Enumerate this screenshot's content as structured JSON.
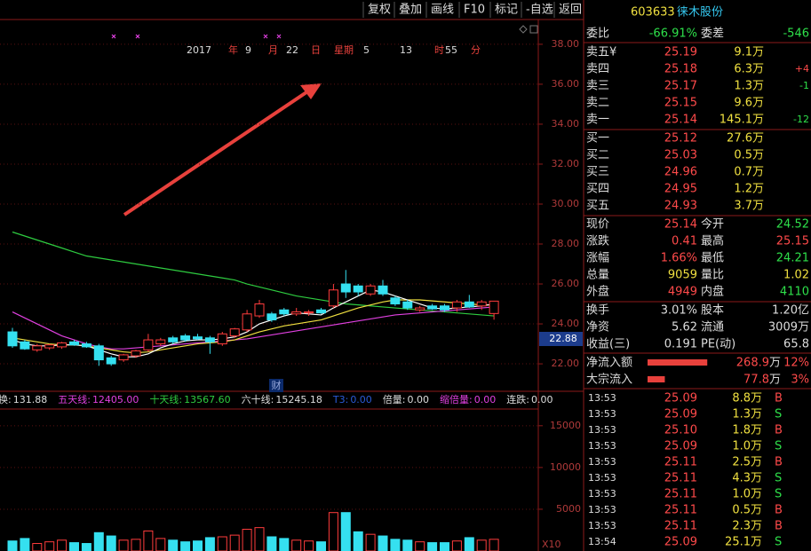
{
  "toolbar": {
    "buttons": [
      "复权",
      "叠加",
      "画线",
      "F10",
      "标记",
      "-自选",
      "返回"
    ]
  },
  "date_row": [
    "2017",
    "年",
    "9",
    "月",
    "22",
    "日",
    "星期",
    "5",
    "13",
    "时",
    "55",
    "分"
  ],
  "price_chart": {
    "ylim": [
      20.67,
      39.24
    ],
    "yticks": [
      {
        "value": 38,
        "label": "38.00"
      },
      {
        "value": 36,
        "label": "36.00"
      },
      {
        "value": 34,
        "label": "34.00"
      },
      {
        "value": 32,
        "label": "32.00"
      },
      {
        "value": 30,
        "label": "30.00"
      },
      {
        "value": 28,
        "label": "28.00"
      },
      {
        "value": 26,
        "label": "26.00"
      },
      {
        "value": 24,
        "label": "24.00"
      },
      {
        "value": 22,
        "label": "22.00"
      }
    ],
    "cursor_label": "22.88",
    "badge": "财",
    "candles": [
      [
        23.6,
        23.8,
        22.8,
        22.9
      ],
      [
        23.1,
        23.2,
        22.7,
        22.75
      ],
      [
        22.7,
        23.0,
        22.6,
        22.9
      ],
      [
        22.8,
        23.0,
        22.7,
        22.95
      ],
      [
        22.85,
        23.1,
        22.75,
        23.05
      ],
      [
        23.1,
        23.2,
        22.9,
        22.95
      ],
      [
        23.0,
        23.1,
        22.8,
        22.85
      ],
      [
        22.9,
        23.0,
        21.9,
        22.2
      ],
      [
        22.3,
        22.4,
        21.9,
        22.0
      ],
      [
        22.2,
        22.5,
        22.1,
        22.45
      ],
      [
        22.4,
        22.7,
        22.3,
        22.65
      ],
      [
        22.7,
        23.5,
        22.6,
        23.2
      ],
      [
        23.0,
        23.3,
        22.9,
        23.2
      ],
      [
        23.3,
        23.4,
        23.0,
        23.1
      ],
      [
        23.4,
        23.5,
        23.1,
        23.2
      ],
      [
        23.35,
        23.5,
        23.2,
        23.25
      ],
      [
        23.3,
        23.4,
        22.5,
        23.1
      ],
      [
        23.0,
        23.6,
        22.9,
        23.5
      ],
      [
        23.4,
        23.8,
        23.3,
        23.75
      ],
      [
        23.7,
        24.7,
        23.6,
        24.5
      ],
      [
        24.4,
        25.2,
        24.3,
        25.0
      ],
      [
        24.5,
        24.6,
        24.1,
        24.2
      ],
      [
        24.7,
        24.8,
        24.4,
        24.5
      ],
      [
        24.5,
        24.8,
        24.4,
        24.6
      ],
      [
        24.55,
        24.7,
        24.4,
        24.6
      ],
      [
        24.7,
        24.8,
        24.5,
        24.55
      ],
      [
        24.9,
        26.0,
        24.8,
        25.7
      ],
      [
        26.0,
        26.7,
        25.3,
        25.6
      ],
      [
        25.9,
        26.0,
        25.4,
        25.6
      ],
      [
        25.5,
        26.0,
        25.4,
        25.9
      ],
      [
        25.9,
        26.2,
        25.4,
        25.5
      ],
      [
        25.3,
        25.4,
        24.9,
        25.0
      ],
      [
        25.1,
        25.2,
        24.7,
        24.8
      ],
      [
        24.7,
        24.9,
        24.6,
        24.8
      ],
      [
        24.9,
        25.0,
        24.7,
        24.75
      ],
      [
        24.9,
        25.0,
        24.6,
        24.7
      ],
      [
        24.8,
        25.2,
        24.6,
        25.1
      ],
      [
        25.1,
        25.45,
        24.8,
        24.85
      ],
      [
        24.9,
        25.2,
        24.7,
        25.1
      ],
      [
        24.52,
        25.15,
        24.21,
        25.14
      ]
    ],
    "lines": [
      {
        "color": "#2ecc40",
        "values": [
          28.6,
          28.4,
          28.2,
          28.0,
          27.8,
          27.6,
          27.4,
          27.3,
          27.2,
          27.1,
          27.0,
          26.9,
          26.8,
          26.7,
          26.6,
          26.5,
          26.4,
          26.3,
          26.2,
          26.0,
          25.85,
          25.7,
          25.55,
          25.4,
          25.3,
          25.2,
          25.1,
          25.0,
          24.95,
          24.9,
          24.85,
          24.8,
          24.75,
          24.7,
          24.65,
          24.6,
          24.55,
          24.5,
          24.45,
          24.4
        ]
      },
      {
        "color": "#e040e0",
        "values": [
          24.6,
          24.3,
          24.0,
          23.7,
          23.4,
          23.2,
          23.0,
          22.85,
          22.75,
          22.75,
          22.8,
          22.85,
          22.9,
          22.95,
          23.0,
          23.05,
          23.1,
          23.15,
          23.2,
          23.25,
          23.35,
          23.45,
          23.55,
          23.65,
          23.75,
          23.85,
          23.95,
          24.05,
          24.15,
          24.25,
          24.35,
          24.45,
          24.5,
          24.55,
          24.6,
          24.65,
          24.7,
          24.75,
          24.8,
          24.85
        ]
      },
      {
        "color": "#f0e040",
        "values": [
          23.3,
          23.2,
          23.1,
          23.0,
          22.95,
          22.95,
          22.9,
          22.8,
          22.7,
          22.6,
          22.55,
          22.6,
          22.7,
          22.8,
          22.9,
          23.0,
          23.05,
          23.1,
          23.2,
          23.4,
          23.6,
          23.75,
          23.9,
          24.0,
          24.1,
          24.2,
          24.4,
          24.6,
          24.8,
          24.95,
          25.1,
          25.2,
          25.2,
          25.2,
          25.15,
          25.1,
          25.05,
          25.0,
          24.95,
          24.95
        ]
      },
      {
        "color": "#ffffff",
        "values": [
          23.2,
          23.0,
          22.9,
          22.9,
          22.95,
          22.95,
          22.9,
          22.7,
          22.5,
          22.35,
          22.35,
          22.5,
          22.8,
          23.0,
          23.15,
          23.2,
          23.2,
          23.25,
          23.35,
          23.6,
          24.0,
          24.2,
          24.4,
          24.55,
          24.5,
          24.45,
          24.8,
          25.1,
          25.4,
          25.7,
          25.6,
          25.4,
          25.2,
          25.0,
          24.8,
          24.75,
          24.8,
          24.85,
          24.9,
          25.0
        ]
      }
    ]
  },
  "indicators": [
    [
      "换:",
      "131.88"
    ],
    [
      "五天线:",
      "12405.00"
    ],
    [
      "十天线:",
      "13567.60"
    ],
    [
      "六十线:",
      "15245.18"
    ],
    [
      "T3:",
      "0.00"
    ],
    [
      "倍量:",
      "0.00"
    ],
    [
      "缩倍量:",
      "0.00"
    ],
    [
      "连跌:",
      "0.00"
    ]
  ],
  "volume_chart": {
    "ylim": [
      0,
      17000
    ],
    "yticks": [
      15000,
      10000,
      5000
    ],
    "unit": "X10",
    "values": [
      1200,
      1500,
      900,
      1100,
      1300,
      1000,
      900,
      2200,
      1800,
      1300,
      1400,
      2400,
      1500,
      1300,
      1100,
      1200,
      1600,
      1700,
      1900,
      2600,
      2800,
      1700,
      1500,
      1300,
      1200,
      1100,
      4600,
      4600,
      2300,
      2000,
      1800,
      1400,
      1300,
      1100,
      1000,
      1000,
      1200,
      1600,
      1300,
      1400
    ]
  },
  "quote": {
    "code": "603633",
    "name": "徕木股份"
  },
  "order_ratio": [
    "委比",
    "-66.91%",
    "委差",
    "-546"
  ],
  "asks": [
    [
      "卖五¥",
      "25.19",
      "9.1万"
    ],
    [
      "卖四",
      "25.18",
      "6.3万",
      "+4"
    ],
    [
      "卖三",
      "25.17",
      "1.3万",
      "-1"
    ],
    [
      "卖二",
      "25.15",
      "9.6万"
    ],
    [
      "卖一",
      "25.14",
      "145.1万",
      "-12"
    ]
  ],
  "bids": [
    [
      "买一",
      "25.12",
      "27.6万"
    ],
    [
      "买二",
      "25.03",
      "0.5万"
    ],
    [
      "买三",
      "24.96",
      "0.7万"
    ],
    [
      "买四",
      "24.95",
      "1.2万"
    ],
    [
      "买五",
      "24.93",
      "3.7万"
    ]
  ],
  "stats": [
    [
      "现价",
      "25.14",
      "今开",
      "24.52"
    ],
    [
      "涨跌",
      "0.41",
      "最高",
      "25.15"
    ],
    [
      "涨幅",
      "1.66%",
      "最低",
      "24.21"
    ],
    [
      "总量",
      "9059",
      "量比",
      "1.02"
    ],
    [
      "外盘",
      "4949",
      "内盘",
      "4110"
    ]
  ],
  "fundamentals": [
    [
      "换手",
      "3.01%",
      "股本",
      "1.20亿"
    ],
    [
      "净资",
      "5.62",
      "流通",
      "3009万"
    ],
    [
      "收益(三)",
      "0.191",
      "PE(动)",
      "65.8"
    ]
  ],
  "flows": [
    {
      "label": "净流入额",
      "amount": 268.9,
      "unit": "万",
      "pct": "12%"
    },
    {
      "label": "大宗流入",
      "amount": 77.8,
      "unit": "万",
      "pct": "3%"
    }
  ],
  "trades": [
    [
      "13:53",
      "25.09",
      "8.8万",
      "B"
    ],
    [
      "13:53",
      "25.09",
      "1.3万",
      "S"
    ],
    [
      "13:53",
      "25.10",
      "1.8万",
      "B"
    ],
    [
      "13:53",
      "25.09",
      "1.0万",
      "S"
    ],
    [
      "13:53",
      "25.11",
      "2.5万",
      "B"
    ],
    [
      "13:53",
      "25.11",
      "4.3万",
      "S"
    ],
    [
      "13:53",
      "25.11",
      "1.0万",
      "S"
    ],
    [
      "13:53",
      "25.11",
      "0.5万",
      "B"
    ],
    [
      "13:53",
      "25.11",
      "2.3万",
      "B"
    ],
    [
      "13:54",
      "25.09",
      "25.1万",
      "S"
    ]
  ]
}
